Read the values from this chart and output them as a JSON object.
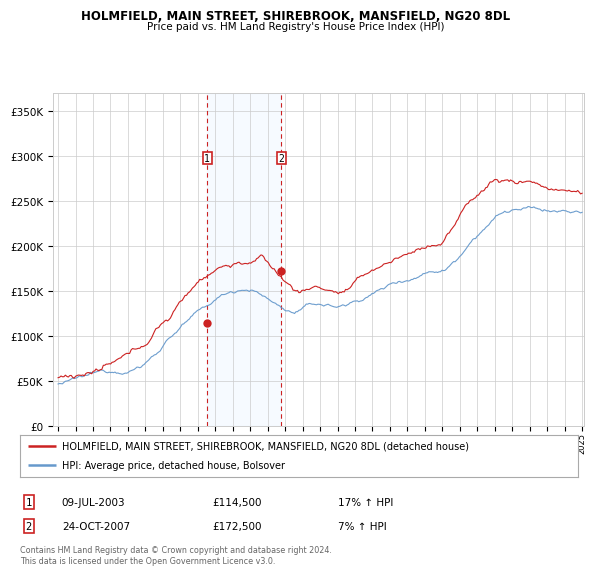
{
  "title": "HOLMFIELD, MAIN STREET, SHIREBROOK, MANSFIELD, NG20 8DL",
  "subtitle": "Price paid vs. HM Land Registry's House Price Index (HPI)",
  "legend_line1": "HOLMFIELD, MAIN STREET, SHIREBROOK, MANSFIELD, NG20 8DL (detached house)",
  "legend_line2": "HPI: Average price, detached house, Bolsover",
  "transaction1_date": "09-JUL-2003",
  "transaction1_price": 114500,
  "transaction1_hpi": "17% ↑ HPI",
  "transaction2_date": "24-OCT-2007",
  "transaction2_price": 172500,
  "transaction2_hpi": "7% ↑ HPI",
  "footer": "Contains HM Land Registry data © Crown copyright and database right 2024.\nThis data is licensed under the Open Government Licence v3.0.",
  "hpi_color": "#6699cc",
  "price_color": "#cc2222",
  "bg_color": "#ffffff",
  "grid_color": "#cccccc",
  "shade_color": "#ddeeff",
  "ylim": [
    0,
    370000
  ],
  "year_start": 1995,
  "year_end": 2025,
  "transaction1_year": 2003.54,
  "transaction2_year": 2007.79
}
